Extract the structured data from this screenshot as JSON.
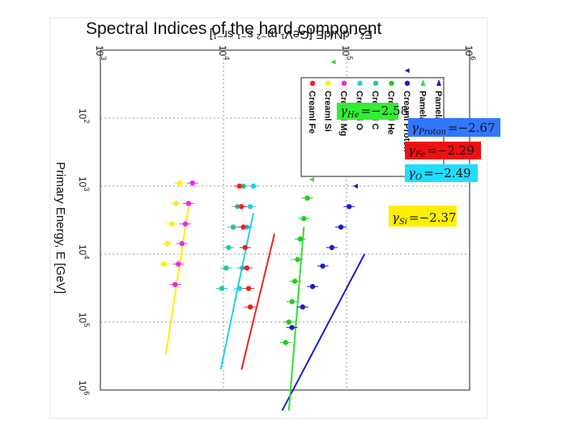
{
  "slide_title": "Spectral Indices of the hard component",
  "chart_data": {
    "type": "scatter",
    "title": "",
    "xlabel": "Primary Energy, E [GeV]",
    "ylabel": "E² · dN/dE [GeV¹ m⁻² s⁻¹ sr⁻¹]",
    "x_scale": "log",
    "y_scale": "log",
    "xlim": [
      10,
      1000000
    ],
    "ylim": [
      1000,
      1000000
    ],
    "x_ticks": [
      {
        "value": 100,
        "base": "10",
        "exp": "2"
      },
      {
        "value": 1000,
        "base": "10",
        "exp": "3"
      },
      {
        "value": 10000,
        "base": "10",
        "exp": "4"
      },
      {
        "value": 100000,
        "base": "10",
        "exp": "5"
      },
      {
        "value": 1000000,
        "base": "10",
        "exp": "6"
      }
    ],
    "y_ticks": [
      {
        "value": 1000,
        "base": "10",
        "exp": "3"
      },
      {
        "value": 10000,
        "base": "10",
        "exp": "4"
      },
      {
        "value": 100000,
        "base": "10",
        "exp": "5"
      },
      {
        "value": 1000000,
        "base": "10",
        "exp": "6"
      }
    ],
    "grid": true,
    "legend_position": "top-right",
    "series": [
      {
        "name": "Pamela p",
        "color": "#1c1ccc",
        "marker": "triangle",
        "x": [
          20,
          35,
          60,
          100,
          160,
          250,
          400,
          630,
          1000
        ],
        "y": [
          310000,
          280000,
          250000,
          222000,
          195000,
          170000,
          150000,
          132000,
          118000
        ]
      },
      {
        "name": "Pamela He",
        "color": "#33dd33",
        "marker": "triangle",
        "x": [
          15,
          30,
          55,
          100,
          180,
          300,
          500,
          800
        ],
        "y": [
          78000,
          74000,
          70000,
          66000,
          62000,
          58000,
          55000,
          52000
        ]
      },
      {
        "name": "Creaml Proton",
        "color": "#1c1ccc",
        "marker": "circle",
        "x": [
          2000,
          4000,
          8000,
          15000,
          30000,
          60000,
          120000
        ],
        "y": [
          105000,
          90000,
          76000,
          64000,
          53000,
          44000,
          36000
        ]
      },
      {
        "name": "Creaml He",
        "color": "#22cc22",
        "marker": "circle",
        "x": [
          1500,
          3000,
          6000,
          12000,
          25000,
          50000,
          100000,
          200000
        ],
        "y": [
          48000,
          45000,
          42000,
          40000,
          38000,
          36000,
          34000,
          32000
        ]
      },
      {
        "name": "Creaml C",
        "color": "#22cc99",
        "marker": "circle",
        "x": [
          1000,
          2000,
          4000,
          8000,
          16000,
          32000
        ],
        "y": [
          14500,
          13000,
          12000,
          11000,
          10500,
          9700
        ]
      },
      {
        "name": "Creaml O",
        "color": "#22ccee",
        "marker": "circle",
        "x": [
          1000,
          2000,
          4000,
          8000,
          16000,
          32000
        ],
        "y": [
          17500,
          16500,
          15500,
          15000,
          14200,
          13500
        ]
      },
      {
        "name": "Creaml Mg",
        "color": "#ee22ee",
        "marker": "circle",
        "x": [
          900,
          1800,
          3600,
          7000,
          14000,
          28000
        ],
        "y": [
          5600,
          5200,
          4900,
          4600,
          4300,
          4050
        ]
      },
      {
        "name": "Creaml Si",
        "color": "#ffee00",
        "marker": "circle",
        "x": [
          900,
          1800,
          3600,
          7000,
          14000
        ],
        "y": [
          4400,
          4100,
          3800,
          3500,
          3300
        ]
      },
      {
        "name": "Creaml Fe",
        "color": "#ee2222",
        "marker": "circle",
        "x": [
          1000,
          2000,
          4000,
          8000,
          16000,
          32000,
          60000
        ],
        "y": [
          13500,
          14000,
          14500,
          15000,
          15500,
          16000,
          16500
        ]
      }
    ],
    "fit_lines": [
      {
        "color": "#1c1ccc",
        "x": [
          10000,
          2000000
        ],
        "y": [
          140000,
          30000
        ]
      },
      {
        "color": "#33dd33",
        "x": [
          4000,
          2000000
        ],
        "y": [
          45000,
          34000
        ]
      },
      {
        "color": "#ee2222",
        "x": [
          5000,
          500000
        ],
        "y": [
          26000,
          14000
        ]
      },
      {
        "color": "#22ccee",
        "x": [
          2500,
          500000
        ],
        "y": [
          17500,
          9500
        ]
      },
      {
        "color": "#ffee00",
        "x": [
          2000,
          300000
        ],
        "y": [
          5200,
          3400
        ]
      }
    ],
    "index_labels": [
      {
        "symbol": "γ",
        "sub": "He",
        "value": "=−2.58",
        "bg": "#33ee33"
      },
      {
        "symbol": "γ",
        "sub": "Proton",
        "value": "=−2.67",
        "bg": "#3377ff"
      },
      {
        "symbol": "γ",
        "sub": "Fe",
        "value": "=−2.29",
        "bg": "#ee1111"
      },
      {
        "symbol": "γ",
        "sub": "O",
        "value": "=−2.49",
        "bg": "#22ddff"
      },
      {
        "symbol": "γ",
        "sub": "Si",
        "value": "=−2.37",
        "bg": "#ffee00"
      }
    ]
  }
}
